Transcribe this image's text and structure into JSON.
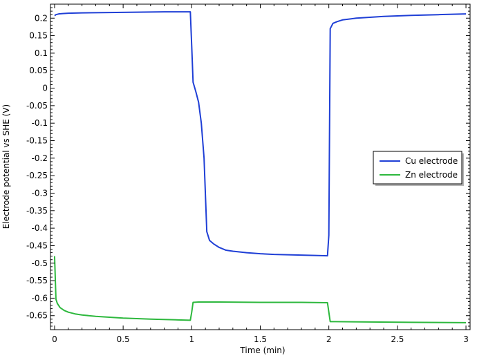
{
  "chart_data": {
    "type": "line",
    "xlabel": "Time (min)",
    "ylabel": "Electrode potential vs SHE (V)",
    "xlim": [
      -0.03,
      3.03
    ],
    "ylim": [
      -0.69,
      0.24
    ],
    "xticks": [
      0,
      0.5,
      1,
      1.5,
      2,
      2.5,
      3
    ],
    "xtick_labels": [
      "0",
      "0.5",
      "1",
      "1.5",
      "2",
      "2.5",
      "3"
    ],
    "yticks": [
      0.2,
      0.15,
      0.1,
      0.05,
      0,
      -0.05,
      -0.1,
      -0.15,
      -0.2,
      -0.25,
      -0.3,
      -0.35,
      -0.4,
      -0.45,
      -0.5,
      -0.55,
      -0.6,
      -0.65
    ],
    "ytick_labels": [
      "0.2",
      "0.15",
      "0.1",
      "0.05",
      "0",
      "-0.05",
      "-0.1",
      "-0.15",
      "-0.2",
      "-0.25",
      "-0.3",
      "-0.35",
      "-0.4",
      "-0.45",
      "-0.5",
      "-0.55",
      "-0.6",
      "-0.65"
    ],
    "grid": false,
    "legend_position": "right",
    "series": [
      {
        "name": "Cu electrode",
        "color": "#1f3fd6",
        "x": [
          0,
          0.01,
          0.03,
          0.06,
          0.1,
          0.2,
          0.4,
          0.6,
          0.8,
          0.99,
          1.0,
          1.01,
          1.03,
          1.05,
          1.07,
          1.09,
          1.11,
          1.13,
          1.16,
          1.2,
          1.25,
          1.3,
          1.4,
          1.5,
          1.6,
          1.7,
          1.8,
          1.9,
          1.99,
          2.0,
          2.01,
          2.03,
          2.06,
          2.1,
          2.2,
          2.4,
          2.6,
          2.8,
          3.0
        ],
        "y": [
          0.207,
          0.21,
          0.212,
          0.213,
          0.214,
          0.215,
          0.216,
          0.217,
          0.218,
          0.218,
          0.12,
          0.017,
          -0.01,
          -0.04,
          -0.1,
          -0.2,
          -0.41,
          -0.435,
          -0.445,
          -0.455,
          -0.463,
          -0.466,
          -0.47,
          -0.473,
          -0.475,
          -0.476,
          -0.477,
          -0.478,
          -0.479,
          -0.42,
          0.17,
          0.185,
          0.19,
          0.195,
          0.2,
          0.205,
          0.208,
          0.21,
          0.212
        ]
      },
      {
        "name": "Zn electrode",
        "color": "#2db83d",
        "x": [
          0,
          0.01,
          0.02,
          0.04,
          0.07,
          0.1,
          0.15,
          0.2,
          0.3,
          0.5,
          0.7,
          0.9,
          0.99,
          1.0,
          1.01,
          1.05,
          1.2,
          1.5,
          1.8,
          1.99,
          2.0,
          2.01,
          2.05,
          2.3,
          2.6,
          3.0
        ],
        "y": [
          -0.48,
          -0.603,
          -0.615,
          -0.627,
          -0.635,
          -0.64,
          -0.645,
          -0.648,
          -0.652,
          -0.657,
          -0.66,
          -0.662,
          -0.663,
          -0.64,
          -0.612,
          -0.611,
          -0.611,
          -0.612,
          -0.612,
          -0.613,
          -0.64,
          -0.667,
          -0.667,
          -0.668,
          -0.669,
          -0.67
        ]
      }
    ]
  }
}
